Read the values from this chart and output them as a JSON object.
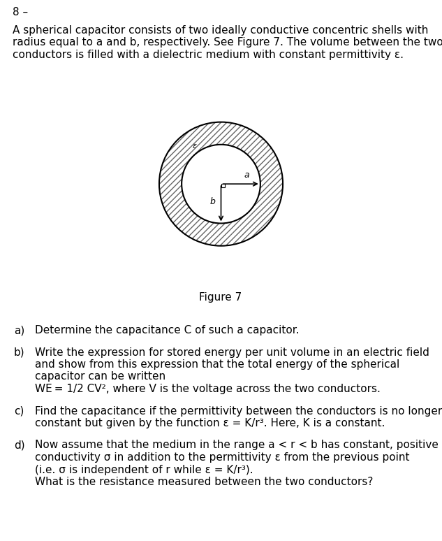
{
  "header": "8 –",
  "intro_lines": [
    "A spherical capacitor consists of two ideally conductive concentric shells with",
    "radius equal to ​a​ and ​b​, respectively. See Figure 7. The volume between the two",
    "conductors is filled with a dielectric medium with constant permittivity ε."
  ],
  "figure_caption": "Figure 7",
  "questions": [
    {
      "label": "a)",
      "lines": [
        "Determine the capacitance C of such a capacitor."
      ]
    },
    {
      "label": "b)",
      "lines": [
        "Write the expression for stored energy per unit volume in an electric field",
        "and show from this expression that the total energy of the spherical",
        "capacitor can be written",
        "WE = 1/2 CV², where V is the voltage across the two conductors."
      ]
    },
    {
      "label": "c)",
      "lines": [
        "Find the capacitance if the permittivity between the conductors is no longer",
        "constant but given by the function ε = K/r³. Here, K is a constant."
      ]
    },
    {
      "label": "d)",
      "lines": [
        "Now assume that the medium in the range a < r < b has constant, positive",
        "conductivity σ in addition to the permittivity ε from the previous point",
        "(i.e. σ is independent of r while ε = K/r³).",
        "What is the resistance measured between the two conductors?"
      ]
    }
  ],
  "bg_color": "#ffffff",
  "text_color": "#000000",
  "font_size": 11.0
}
